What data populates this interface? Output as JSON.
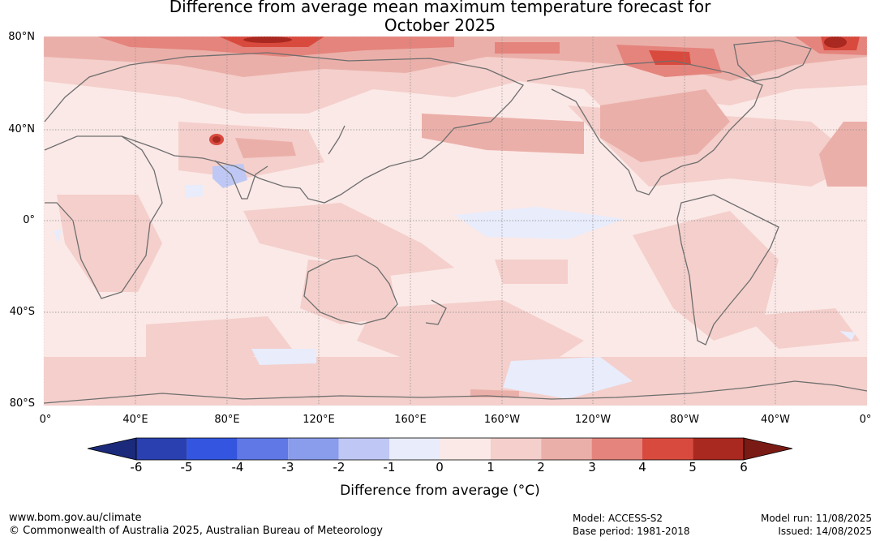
{
  "title": {
    "line1": "Difference from average mean maximum temperature forecast for",
    "line2": "October 2025"
  },
  "map": {
    "lat_labels": [
      "80°N",
      "40°N",
      "0°",
      "40°S",
      "80°S"
    ],
    "lon_labels": [
      "0°",
      "40°E",
      "80°E",
      "120°E",
      "160°E",
      "160°W",
      "120°W",
      "80°W",
      "40°W",
      "0°"
    ],
    "base_color": "#fbe9e7"
  },
  "colorbar": {
    "title": "Difference from average (°C)",
    "tick_labels": [
      "-6",
      "-5",
      "-4",
      "-3",
      "-2",
      "-1",
      "0",
      "1",
      "2",
      "3",
      "4",
      "5",
      "6"
    ],
    "colors": [
      "#1b2a7a",
      "#2a40b0",
      "#3355e0",
      "#5f78e6",
      "#8a9cec",
      "#bfc8f4",
      "#e8ecfb",
      "#fbe9e7",
      "#f4cfcb",
      "#ebafa9",
      "#e4847c",
      "#d94a3e",
      "#a9281f",
      "#7a1a14"
    ]
  },
  "footer": {
    "website": "www.bom.gov.au/climate",
    "copyright": "© Commonwealth of Australia 2025, Australian Bureau of Meteorology",
    "model": "Model: ACCESS-S2",
    "base_period": "Base period: 1981-2018",
    "model_run": "Model run: 11/08/2025",
    "issued": "Issued: 14/08/2025"
  }
}
